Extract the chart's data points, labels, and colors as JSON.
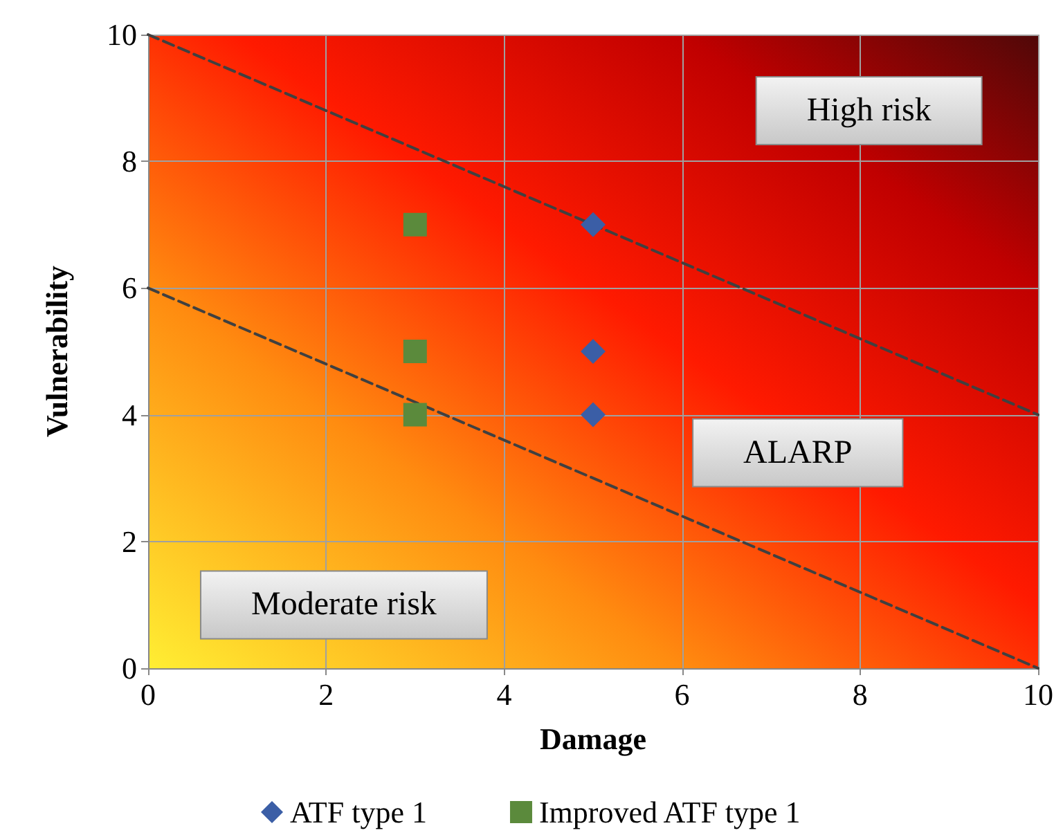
{
  "chart_data": {
    "type": "scatter",
    "xlabel": "Damage",
    "ylabel": "Vulnerability",
    "xlim": [
      0,
      10
    ],
    "xticks": [
      0,
      2,
      4,
      6,
      8,
      10
    ],
    "ylim": [
      0,
      10
    ],
    "yticks": [
      0,
      2,
      4,
      6,
      8,
      10
    ],
    "grid": true,
    "legend": "bottom",
    "series": [
      {
        "name": "ATF type 1",
        "color": "#3b5ea6",
        "marker": "diamond",
        "x": [
          5,
          5,
          5
        ],
        "values": [
          7,
          5,
          4
        ]
      },
      {
        "name": "Improved ATF type 1",
        "color": "#5b8a3c",
        "marker": "square",
        "x": [
          3,
          3,
          3
        ],
        "values": [
          7,
          5,
          4
        ]
      },
      {
        "type": "line",
        "color": "#404040",
        "line_style": "dashed",
        "marker": "none",
        "x": [
          0,
          10
        ],
        "values": [
          10,
          4
        ]
      },
      {
        "type": "line",
        "color": "#404040",
        "line_style": "dashed",
        "marker": "none",
        "x": [
          0,
          10
        ],
        "values": [
          6,
          0
        ]
      }
    ],
    "annotations": [
      "High risk",
      "ALARP",
      "Moderate risk"
    ]
  }
}
